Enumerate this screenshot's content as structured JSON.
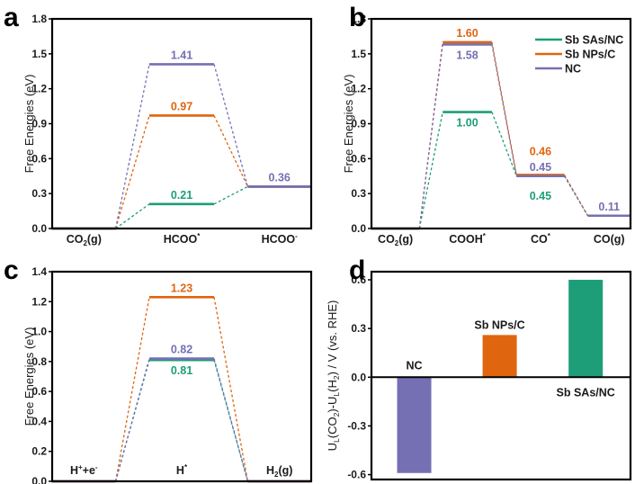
{
  "colors": {
    "Sb SAs/NC": "#1e9e78",
    "Sb NPs/C": "#e0650f",
    "NC": "#7570b3"
  },
  "legend": {
    "placement": "top-right of panel b",
    "entries": [
      "Sb SAs/NC",
      "Sb NPs/C",
      "NC"
    ]
  },
  "chart_data": [
    {
      "panel": "a",
      "type": "line",
      "subtype": "free-energy-diagram",
      "ylabel": "Free Energies (eV)",
      "ylim": [
        0,
        1.8
      ],
      "yticks": [
        "0.0",
        "0.3",
        "0.6",
        "0.9",
        "1.2",
        "1.5",
        "1.8"
      ],
      "ytick_values": [
        0,
        0.3,
        0.6,
        0.9,
        1.2,
        1.5,
        1.8
      ],
      "categories": [
        "CO2(g)",
        "HCOO*",
        "HCOO-"
      ],
      "category_labels": [
        {
          "base": "CO",
          "sub": "2",
          "sup": "",
          "tail": "(g)"
        },
        {
          "base": "HCOO",
          "sub": "",
          "sup": "*",
          "tail": ""
        },
        {
          "base": "HCOO",
          "sub": "",
          "sup": "-",
          "tail": ""
        }
      ],
      "series": [
        {
          "name": "Sb SAs/NC",
          "values": [
            0,
            0.21,
            0.36
          ],
          "labels": [
            "",
            "0.21",
            ""
          ],
          "label_pos": [
            "",
            "above",
            ""
          ]
        },
        {
          "name": "Sb NPs/C",
          "values": [
            0,
            0.97,
            0.36
          ],
          "labels": [
            "",
            "0.97",
            ""
          ],
          "label_pos": [
            "",
            "above",
            ""
          ]
        },
        {
          "name": "NC",
          "values": [
            0,
            1.41,
            0.36
          ],
          "labels": [
            "",
            "1.41",
            "0.36"
          ],
          "label_pos": [
            "",
            "above",
            "above"
          ]
        }
      ]
    },
    {
      "panel": "b",
      "type": "line",
      "subtype": "free-energy-diagram",
      "ylabel": "Free Energies (eV)",
      "ylim": [
        0,
        1.8
      ],
      "yticks": [
        "0.0",
        "0.3",
        "0.6",
        "0.9",
        "1.2",
        "1.5",
        "1.8"
      ],
      "ytick_values": [
        0,
        0.3,
        0.6,
        0.9,
        1.2,
        1.5,
        1.8
      ],
      "categories": [
        "CO2(g)",
        "COOH*",
        "CO*",
        "CO(g)"
      ],
      "category_labels": [
        {
          "base": "CO",
          "sub": "2",
          "sup": "",
          "tail": "(g)"
        },
        {
          "base": "COOH",
          "sub": "",
          "sup": "*",
          "tail": ""
        },
        {
          "base": "CO",
          "sub": "",
          "sup": "*",
          "tail": ""
        },
        {
          "base": "CO(g)",
          "sub": "",
          "sup": "",
          "tail": ""
        }
      ],
      "series": [
        {
          "name": "Sb SAs/NC",
          "values": [
            0,
            1.0,
            0.45,
            0.11
          ],
          "labels": [
            "",
            "1.00",
            "0.45",
            ""
          ],
          "label_pos": [
            "",
            "below",
            "below2",
            ""
          ]
        },
        {
          "name": "Sb NPs/C",
          "values": [
            0,
            1.6,
            0.46,
            0.11
          ],
          "labels": [
            "",
            "1.60",
            "0.46",
            ""
          ],
          "label_pos": [
            "",
            "above",
            "above2",
            ""
          ]
        },
        {
          "name": "NC",
          "values": [
            0,
            1.58,
            0.45,
            0.11
          ],
          "labels": [
            "",
            "1.58",
            "0.45",
            "0.11"
          ],
          "label_pos": [
            "",
            "below",
            "above",
            "above"
          ]
        }
      ]
    },
    {
      "panel": "c",
      "type": "line",
      "subtype": "free-energy-diagram",
      "ylabel": "Free Energies (eV)",
      "ylim": [
        0,
        1.4
      ],
      "yticks": [
        "0.0",
        "0.2",
        "0.4",
        "0.6",
        "0.8",
        "1.0",
        "1.2",
        "1.4"
      ],
      "ytick_values": [
        0,
        0.2,
        0.4,
        0.6,
        0.8,
        1.0,
        1.2,
        1.4
      ],
      "categories": [
        "H+ + e-",
        "H*",
        "H2(g)"
      ],
      "category_labels": [
        {
          "base": "H",
          "sub": "",
          "sup": "+",
          "tail": "+e",
          "tailsup": "-"
        },
        {
          "base": "H",
          "sub": "",
          "sup": "*",
          "tail": ""
        },
        {
          "base": "H",
          "sub": "2",
          "sup": "",
          "tail": "(g)"
        }
      ],
      "series": [
        {
          "name": "Sb SAs/NC",
          "values": [
            0,
            0.81,
            0
          ],
          "labels": [
            "",
            "0.81",
            ""
          ],
          "label_pos": [
            "",
            "below",
            ""
          ]
        },
        {
          "name": "Sb NPs/C",
          "values": [
            0,
            1.23,
            0
          ],
          "labels": [
            "",
            "1.23",
            ""
          ],
          "label_pos": [
            "",
            "above",
            ""
          ]
        },
        {
          "name": "NC",
          "values": [
            0,
            0.82,
            0
          ],
          "labels": [
            "",
            "0.82",
            ""
          ],
          "label_pos": [
            "",
            "above",
            ""
          ]
        }
      ]
    },
    {
      "panel": "d",
      "type": "bar",
      "ylabel_parts": [
        "U",
        "L",
        "(CO",
        "2",
        ")-U",
        "L",
        "(H",
        "2",
        ") / V (vs. RHE)"
      ],
      "ylabel": "UL(CO2)-UL(H2) / V (vs. RHE)",
      "ylim": [
        -0.63,
        0.65
      ],
      "yticks": [
        "-0.6",
        "-0.3",
        "0.0",
        "0.3",
        "0.6"
      ],
      "ytick_values": [
        -0.6,
        -0.3,
        0,
        0.3,
        0.6
      ],
      "categories": [
        "NC",
        "Sb NPs/C",
        "Sb SAs/NC"
      ],
      "values": [
        -0.59,
        0.26,
        0.6
      ],
      "label_pos": [
        "above-zero",
        "above-bar",
        "below-zero"
      ]
    }
  ]
}
